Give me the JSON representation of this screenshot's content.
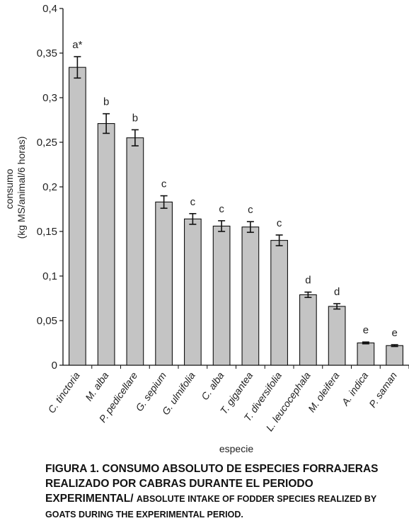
{
  "chart_data": {
    "type": "bar",
    "xlabel": "especie",
    "ylabel_lines": [
      "consumo",
      "(kg MS/animal/6 horas)"
    ],
    "ylim": [
      0,
      0.4
    ],
    "yticks": [
      0,
      0.05,
      0.1,
      0.15,
      0.2,
      0.25,
      0.3,
      0.35,
      0.4
    ],
    "ytick_labels": [
      "0",
      "0,05",
      "0,1",
      "0,15",
      "0,2",
      "0,25",
      "0,3",
      "0,35",
      "0,4"
    ],
    "categories": [
      "C. tinctoria",
      "M. alba",
      "P. pedicellare",
      "G. sepium",
      "G. ulmifolia",
      "C. alba",
      "T. gigantea",
      "T. diversifolia",
      "L. leucocephala",
      "M. oleifera",
      "A. indica",
      "P. saman"
    ],
    "values": [
      0.334,
      0.271,
      0.255,
      0.183,
      0.164,
      0.156,
      0.155,
      0.14,
      0.079,
      0.066,
      0.025,
      0.022
    ],
    "errors": [
      0.012,
      0.011,
      0.009,
      0.007,
      0.006,
      0.006,
      0.006,
      0.006,
      0.003,
      0.003,
      0.001,
      0.001
    ],
    "significance": [
      "a*",
      "b",
      "b",
      "c",
      "c",
      "c",
      "c",
      "c",
      "d",
      "d",
      "e",
      "e"
    ],
    "bar_color": "#c4c4c4",
    "grid": false,
    "legend": "none"
  },
  "caption": {
    "main": "FIGURA 1. CONSUMO ABSOLUTO DE ESPECIES FORRAJERAS REALIZADO POR CABRAS DURANTE EL PERIODO EXPERIMENTAL/ ",
    "english": "ABSOLUTE INTAKE OF FODDER SPECIES REALIZED BY GOATS DURING THE EXPERIMENTAL PERIOD."
  }
}
